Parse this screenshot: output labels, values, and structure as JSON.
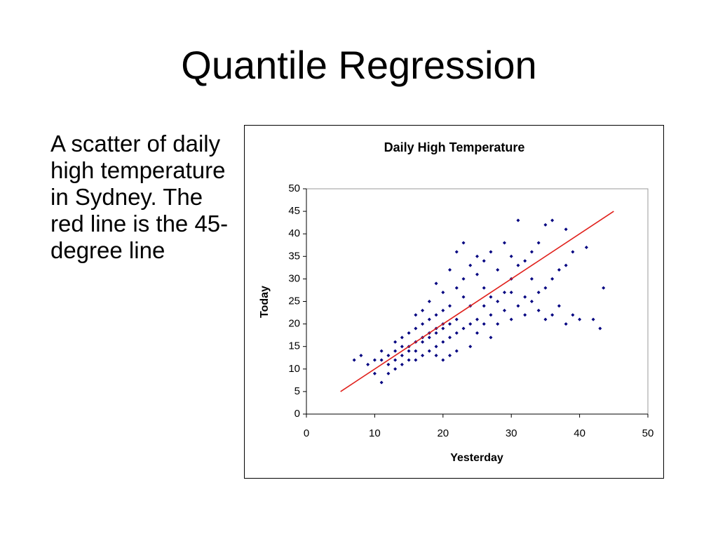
{
  "title": "Quantile Regression",
  "body": "A scatter of daily high temperature in Sydney. The red line is the 45-degree line",
  "chart_data": {
    "type": "scatter",
    "title": "Daily High Temperature",
    "x_label": "Yesterday",
    "y_label": "Today",
    "xlim": [
      0,
      50
    ],
    "ylim": [
      0,
      50
    ],
    "xticks": [
      0,
      10,
      20,
      30,
      40,
      50
    ],
    "yticks": [
      0,
      5,
      10,
      15,
      20,
      25,
      30,
      35,
      40,
      45,
      50
    ],
    "series": [
      {
        "color": "#000080",
        "x": [
          11,
          12,
          13,
          14,
          15,
          16,
          17,
          18,
          19,
          20,
          12,
          13,
          14,
          15,
          16,
          17,
          18,
          19,
          20,
          21,
          22,
          13,
          14,
          15,
          16,
          17,
          18,
          19,
          20,
          21,
          11,
          10,
          9,
          8,
          7,
          10,
          11,
          12,
          13,
          14,
          15,
          16,
          17,
          18,
          19,
          20,
          21,
          22,
          23,
          24,
          25,
          26,
          27,
          28,
          29,
          30,
          31,
          32,
          33,
          34,
          35,
          36,
          37,
          38,
          39,
          40,
          42,
          43,
          43.5,
          41,
          38,
          36,
          35,
          33,
          31,
          30,
          29,
          27,
          26,
          25,
          24,
          23,
          22,
          21,
          20,
          19,
          18,
          17,
          16,
          22,
          23,
          25,
          28,
          30,
          32,
          34,
          37,
          39,
          31,
          35,
          33,
          29,
          27,
          26,
          24,
          23,
          25,
          27,
          24,
          22,
          21,
          20,
          19,
          26,
          28,
          30,
          32,
          34,
          36,
          38
        ],
        "values": [
          12,
          13,
          14,
          13,
          15,
          16,
          17,
          18,
          19,
          20,
          11,
          12,
          15,
          14,
          14,
          16,
          17,
          18,
          19,
          20,
          21,
          16,
          17,
          18,
          19,
          20,
          21,
          22,
          23,
          24,
          14,
          12,
          11,
          13,
          12,
          9,
          7,
          9,
          10,
          11,
          12,
          12,
          13,
          14,
          15,
          16,
          17,
          18,
          19,
          20,
          21,
          20,
          22,
          20,
          23,
          21,
          24,
          22,
          25,
          23,
          21,
          22,
          24,
          20,
          22,
          21,
          21,
          19,
          28,
          37,
          41,
          43,
          42,
          36,
          33,
          35,
          38,
          36,
          34,
          31,
          33,
          30,
          28,
          32,
          27,
          29,
          25,
          23,
          22,
          36,
          38,
          35,
          32,
          30,
          34,
          38,
          32,
          36,
          43,
          28,
          30,
          27,
          26,
          28,
          24,
          26,
          18,
          17,
          15,
          14,
          13,
          12,
          13,
          24,
          25,
          27,
          26,
          27,
          30,
          33
        ]
      },
      {
        "type": "line",
        "color": "#e0201b",
        "x": [
          5,
          45
        ],
        "values": [
          5,
          45
        ]
      }
    ]
  }
}
